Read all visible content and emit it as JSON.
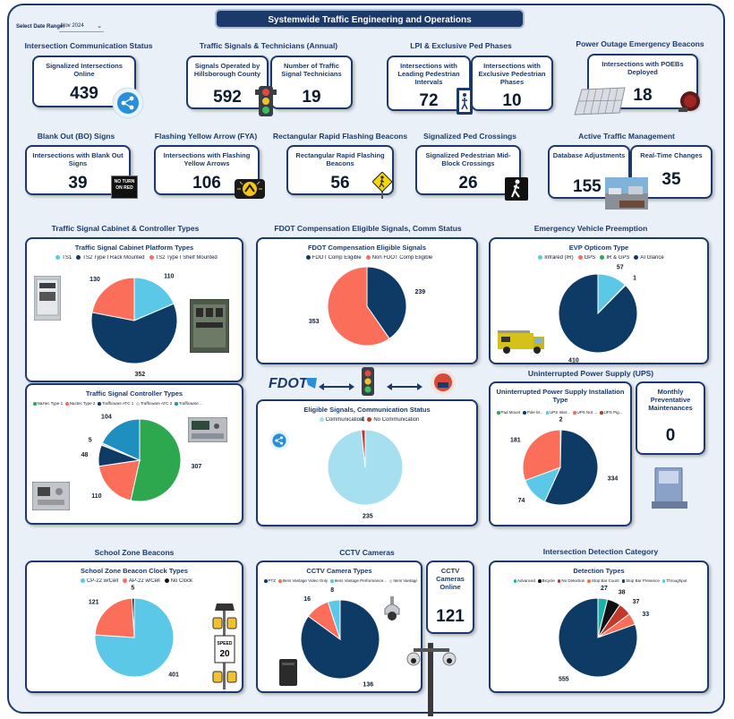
{
  "header": {
    "title": "Systemwide Traffic Engineering and Operations",
    "date_label": "Select Date Range:",
    "date_value": "Nov 2024"
  },
  "sections": {
    "comm": "Intersection Communication Status",
    "signals": "Traffic Signals & Technicians (Annual)",
    "lpi": "LPI & Exclusive Ped Phases",
    "poeb": "Power Outage Emergency Beacons",
    "blank": "Blank Out (BO) Signs",
    "fya": "Flashing Yellow Arrow (FYA)",
    "rrfb": "Rectangular Rapid Flashing Beacons",
    "ped": "Signalized Ped Crossings",
    "atm": "Active Traffic Management",
    "cabinet": "Traffic Signal Cabinet & Controller Types",
    "fdot": "FDOT Compensation Eligible Signals, Comm Status",
    "evp": "Emergency Vehicle Preemption",
    "ups": "Uninterrupted Power Supply (UPS)",
    "school": "School Zone Beacons",
    "cctv": "CCTV Cameras",
    "detection": "Intersection Detection Category"
  },
  "kpis": {
    "online": {
      "label": "Signalized Intersections Online",
      "value": "439"
    },
    "operated": {
      "label": "Signals Operated by Hillsborough County",
      "value": "592"
    },
    "techs": {
      "label": "Number of Traffic Signal Technicians",
      "value": "19"
    },
    "lpi": {
      "label": "Intersections with Leading Pedestrian Intervals",
      "value": "72"
    },
    "excl": {
      "label": "Intersections with Exclusive Pedestrian Phases",
      "value": "10"
    },
    "poeb": {
      "label": "Intersections with POEBs Deployed",
      "value": "18"
    },
    "blank": {
      "label": "Intersections with Blank Out Signs",
      "value": "39"
    },
    "fya": {
      "label": "Intersections with Flashing Yellow Arrows",
      "value": "106"
    },
    "rrfb": {
      "label": "Rectangular Rapid Flashing Beacons",
      "value": "56"
    },
    "ped": {
      "label": "Signalized Pedestrian Mid-Block Crossings",
      "value": "26"
    },
    "db": {
      "label": "Database Adjustments",
      "value": "155"
    },
    "rt": {
      "label": "Real-Time Changes",
      "value": "35"
    },
    "ppm": {
      "label": "Monthly Preventative Maintenances",
      "value": "0"
    },
    "cctv_online": {
      "label": "CCTV Cameras Online",
      "value": "121"
    }
  },
  "signs": {
    "no_turn": "NO TURN ON RED",
    "speed": "SPEED LIMIT 20 WHEN FLASHING",
    "fdot": "FDOT"
  },
  "chart_data": [
    {
      "id": "cabinet",
      "type": "pie",
      "title": "Traffic Signal Cabinet Platform Types",
      "series": [
        {
          "name": "TS1",
          "value": 110,
          "color": "#5bc8e8"
        },
        {
          "name": "TS2 Type I Rack Mounted",
          "value": 352,
          "color": "#0e3a66"
        },
        {
          "name": "TS2 Type I Shelf Mounted",
          "value": 130,
          "color": "#fa6e5a"
        }
      ]
    },
    {
      "id": "controller",
      "type": "pie",
      "title": "Traffic Signal Controller Types",
      "series": [
        {
          "name": "Naztec Type 1",
          "value": 307,
          "color": "#2da84f"
        },
        {
          "name": "Naztec Type 2",
          "value": 110,
          "color": "#fa6e5a"
        },
        {
          "name": "Trafficware ATC 1",
          "value": 48,
          "color": "#0e3a66"
        },
        {
          "name": "Trafficware ATC 2",
          "value": 5,
          "color": "#d0d4da"
        },
        {
          "name": "Trafficware ...",
          "value": 104,
          "color": "#1f8fbf"
        }
      ]
    },
    {
      "id": "fdot",
      "type": "pie",
      "title": "FDOT Compensation Eligible Signals",
      "series": [
        {
          "name": "FDOT Comp Eligible",
          "value": 239,
          "color": "#0e3a66"
        },
        {
          "name": "Non FDOT Comp Eligible",
          "value": 353,
          "color": "#fa6e5a"
        }
      ]
    },
    {
      "id": "eligible",
      "type": "pie",
      "title": "Eligible Signals, Communication Status",
      "series": [
        {
          "name": "Communication",
          "value": 235,
          "color": "#a6dff0"
        },
        {
          "name": "No Communication",
          "value": 4,
          "color": "#c0392b"
        }
      ]
    },
    {
      "id": "evp",
      "type": "pie",
      "title": "EVP Opticom Type",
      "series": [
        {
          "name": "Infrared (IR)",
          "value": 57,
          "color": "#5bc8e8"
        },
        {
          "name": "GPS",
          "value": 1,
          "color": "#fa6e5a"
        },
        {
          "name": "IR & GPS",
          "value": 0,
          "color": "#2da84f"
        },
        {
          "name": "AI Glance",
          "value": 410,
          "color": "#0e3a66"
        }
      ]
    },
    {
      "id": "ups",
      "type": "pie",
      "title": "Uninterrupted Power Supply Installation Type",
      "series": [
        {
          "name": "Pad Mount",
          "value": 2,
          "color": "#2da84f"
        },
        {
          "name": "Pole M...",
          "value": 334,
          "color": "#0e3a66"
        },
        {
          "name": "UPS Inter...",
          "value": 74,
          "color": "#5bc8e8"
        },
        {
          "name": "UPS Not ...",
          "value": 181,
          "color": "#fa6e5a"
        },
        {
          "name": "UPS Pig...",
          "value": 0,
          "color": "#c0392b"
        }
      ]
    },
    {
      "id": "school",
      "type": "pie",
      "title": "School Zone Beacon Clock Types",
      "series": [
        {
          "name": "CP-22 w/Cell",
          "value": 401,
          "color": "#5bc8e8"
        },
        {
          "name": "AP-22 w/Cell",
          "value": 121,
          "color": "#fa6e5a"
        },
        {
          "name": "No Clock",
          "value": 5,
          "color": "#111111"
        }
      ]
    },
    {
      "id": "cctv",
      "type": "pie",
      "title": "CCTV Camera Types",
      "series": [
        {
          "name": "PTZ",
          "value": 136,
          "color": "#0e3a66"
        },
        {
          "name": "Iteris Vantage Video Only",
          "value": 16,
          "color": "#fa6e5a"
        },
        {
          "name": "Iteris Vantage Performance...",
          "value": 8,
          "color": "#5bc8e8"
        },
        {
          "name": "Iteris Vantage Performance...",
          "value": 0,
          "color": "#d0d4da"
        }
      ]
    },
    {
      "id": "detection",
      "type": "pie",
      "title": "Detection Types",
      "series": [
        {
          "name": "Advanced",
          "value": 27,
          "color": "#1bb3a8"
        },
        {
          "name": "Bicycle",
          "value": 38,
          "color": "#111111"
        },
        {
          "name": "No Detection",
          "value": 37,
          "color": "#c0392b"
        },
        {
          "name": "Stop Bar Count",
          "value": 33,
          "color": "#fa6e5a"
        },
        {
          "name": "Stop Bar Presence",
          "value": 555,
          "color": "#0e3a66"
        },
        {
          "name": "Throughput",
          "value": 0,
          "color": "#5bc8e8"
        }
      ]
    }
  ]
}
